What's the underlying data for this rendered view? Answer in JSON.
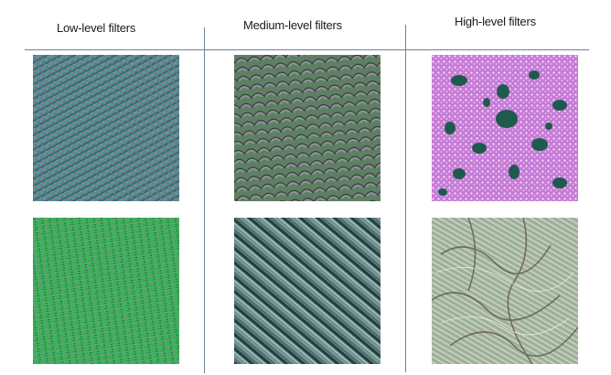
{
  "columns": [
    {
      "heading": "Low-level filters"
    },
    {
      "heading": "Medium-level filters"
    },
    {
      "heading": "High-level filters"
    }
  ]
}
